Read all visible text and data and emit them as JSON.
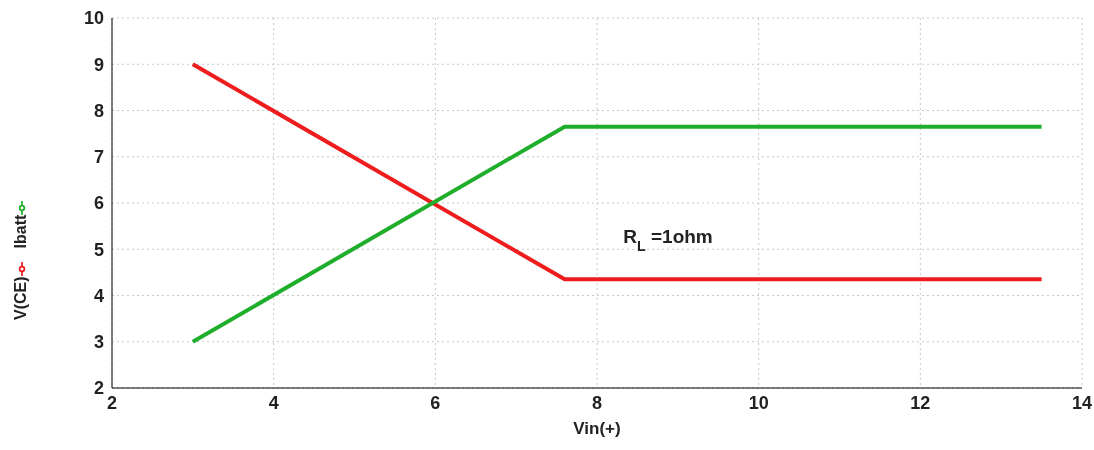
{
  "chart_data": {
    "type": "line",
    "xlabel": "Vin(+)",
    "annotations": [
      "R$_{L}$ =1ohm"
    ],
    "series": [
      {
        "name": "V(CE)",
        "color": "#ee1c1c",
        "x": [
          3,
          7.6,
          13.5
        ],
        "values": [
          9,
          4.35,
          4.35
        ]
      },
      {
        "name": "Ibatt",
        "color": "#1fae2b",
        "x": [
          3,
          7.6,
          13.5
        ],
        "values": [
          3,
          7.65,
          7.65
        ]
      }
    ],
    "xlim": [
      2,
      14
    ],
    "xticks": [
      2,
      4,
      6,
      8,
      10,
      12,
      14
    ],
    "ylim": [
      2,
      10
    ],
    "yticks": [
      2,
      3,
      4,
      5,
      6,
      7,
      8,
      9,
      10
    ],
    "grid": true,
    "legend": "left",
    "marker": "none",
    "line_style": "solid"
  }
}
